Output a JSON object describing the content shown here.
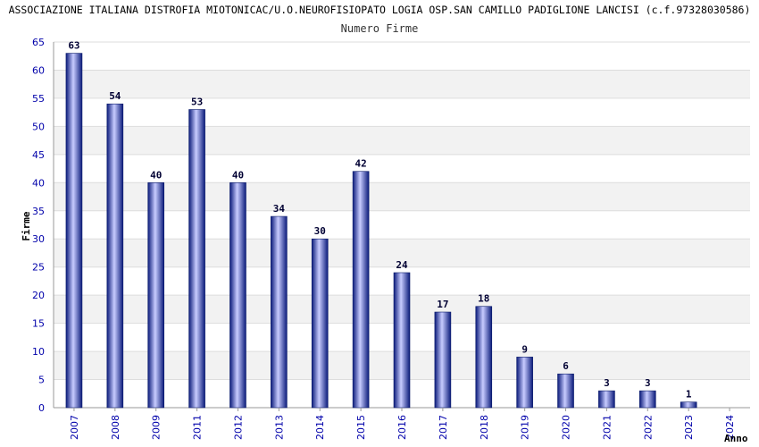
{
  "chart_data": {
    "type": "bar",
    "title": "ASSOCIAZIONE ITALIANA DISTROFIA MIOTONICAC/U.O.NEUROFISIOPATO LOGIA OSP.SAN CAMILLO PADIGLIONE LANCISI (c.f.97328030586)",
    "subtitle": "Numero Firme",
    "xlabel": "Anno",
    "ylabel": "Firme",
    "categories": [
      "2007",
      "2008",
      "2009",
      "2011",
      "2012",
      "2013",
      "2014",
      "2015",
      "2016",
      "2017",
      "2018",
      "2019",
      "2020",
      "2021",
      "2022",
      "2023",
      "2024"
    ],
    "values": [
      63,
      54,
      40,
      53,
      40,
      34,
      30,
      42,
      24,
      17,
      18,
      9,
      6,
      3,
      3,
      1,
      null
    ],
    "ylim": [
      0,
      65
    ],
    "yticks": [
      0,
      5,
      10,
      15,
      20,
      25,
      30,
      35,
      40,
      45,
      50,
      55,
      60,
      65
    ],
    "grid": true,
    "colors": {
      "bar_dark": "#0a1a7a",
      "bar_light": "#c8ccff",
      "band": "#f2f2f2",
      "gridline": "#dddddd",
      "tick_text": "#0000aa"
    }
  }
}
